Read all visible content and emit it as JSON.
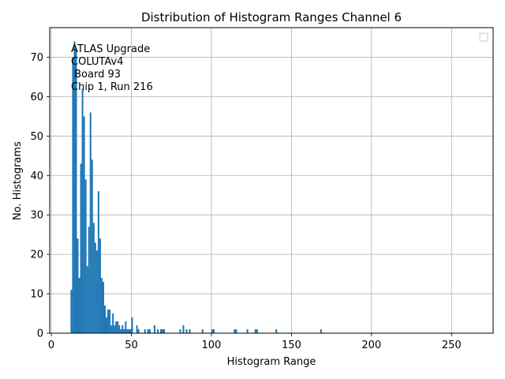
{
  "chart_data": {
    "type": "bar",
    "title": "Distribution of Histogram Ranges Channel 6",
    "xlabel": "Histogram Range",
    "ylabel": "No. Histograms",
    "xlim": [
      -1,
      276
    ],
    "ylim": [
      0,
      77.5
    ],
    "xticks": [
      0,
      50,
      100,
      150,
      200,
      250
    ],
    "yticks": [
      0,
      10,
      20,
      30,
      40,
      50,
      60,
      70
    ],
    "grid": true,
    "bar_color": "#1f77b4",
    "legend": {
      "placement": "top-right",
      "entries": []
    },
    "annotation": [
      "ATLAS Upgrade",
      "COLUTAv4",
      " Board 93",
      "Chip 1, Run 216"
    ],
    "bin_width": 1,
    "bins": [
      [
        12,
        11
      ],
      [
        13,
        70
      ],
      [
        14,
        74
      ],
      [
        15,
        72
      ],
      [
        16,
        24
      ],
      [
        17,
        14
      ],
      [
        18,
        43
      ],
      [
        19,
        62
      ],
      [
        20,
        55
      ],
      [
        21,
        39
      ],
      [
        22,
        17
      ],
      [
        23,
        27
      ],
      [
        24,
        56
      ],
      [
        25,
        44
      ],
      [
        26,
        28
      ],
      [
        27,
        23
      ],
      [
        28,
        21
      ],
      [
        29,
        36
      ],
      [
        30,
        24
      ],
      [
        31,
        14
      ],
      [
        32,
        13
      ],
      [
        33,
        7
      ],
      [
        34,
        4
      ],
      [
        35,
        6
      ],
      [
        36,
        6
      ],
      [
        37,
        2
      ],
      [
        38,
        5
      ],
      [
        39,
        2
      ],
      [
        40,
        3
      ],
      [
        41,
        3
      ],
      [
        42,
        2
      ],
      [
        43,
        1
      ],
      [
        44,
        2
      ],
      [
        45,
        1
      ],
      [
        46,
        3
      ],
      [
        47,
        1
      ],
      [
        48,
        1
      ],
      [
        49,
        1
      ],
      [
        50,
        4
      ],
      [
        53,
        2
      ],
      [
        54,
        1
      ],
      [
        58,
        1
      ],
      [
        60,
        1
      ],
      [
        61,
        1
      ],
      [
        64,
        2
      ],
      [
        66,
        1
      ],
      [
        68,
        1
      ],
      [
        69,
        1
      ],
      [
        70,
        1
      ],
      [
        80,
        1
      ],
      [
        82,
        2
      ],
      [
        84,
        1
      ],
      [
        86,
        1
      ],
      [
        94,
        1
      ],
      [
        100,
        1
      ],
      [
        101,
        1
      ],
      [
        114,
        1
      ],
      [
        115,
        1
      ],
      [
        122,
        1
      ],
      [
        127,
        1
      ],
      [
        128,
        1
      ],
      [
        140,
        1
      ],
      [
        168,
        1
      ]
    ]
  }
}
